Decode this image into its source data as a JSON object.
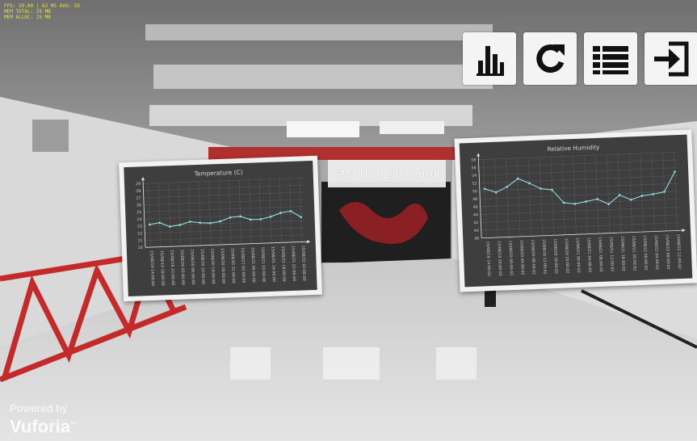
{
  "stats": {
    "line1": "FPS: 59.00 | 62 MS AVG: 59",
    "line2": "MEM TOTAL: 29 MB",
    "line3": "MEM ALLOC: 25 MB"
  },
  "toolbar": {
    "buttons": [
      {
        "name": "chart-button",
        "icon": "bar-chart-icon"
      },
      {
        "name": "refresh-button",
        "icon": "refresh-icon"
      },
      {
        "name": "list-button",
        "icon": "list-icon"
      },
      {
        "name": "exit-button",
        "icon": "sign-out-icon"
      }
    ]
  },
  "sign": {
    "label": "SMT HCI Lab Sensor"
  },
  "branding": {
    "powered_by": "Powered by",
    "name": "Vuforia",
    "trademark": "™"
  },
  "chart_data": [
    {
      "type": "line",
      "title": "Temperature (C)",
      "yticks": [
        20,
        21,
        22,
        23,
        24,
        25,
        26,
        27,
        28,
        29
      ],
      "ylim": [
        20,
        29
      ],
      "x": [
        "15/08/19 14:00:00",
        "15/08/19 18:00:00",
        "15/08/19 22:00:00",
        "15/08/20 02:00:00",
        "15/08/20 06:00:00",
        "15/08/20 10:00:00",
        "15/08/20 14:00:00",
        "15/08/20 18:00:00",
        "15/08/20 22:00:00",
        "15/08/21 02:00:00",
        "15/08/21 06:00:00",
        "15/08/21 10:00:00",
        "15/08/21 14:00:00",
        "15/08/21 18:00:00",
        "15/08/21 22:00:00",
        "15/08/22 02:00:00"
      ],
      "values": [
        23.2,
        23.4,
        22.8,
        23.0,
        23.4,
        23.2,
        23.1,
        23.3,
        23.8,
        23.9,
        23.4,
        23.4,
        23.7,
        24.2,
        24.4,
        23.5
      ],
      "grid": true,
      "color": "#8fd6d9"
    },
    {
      "type": "line",
      "title": "Relative Humidity",
      "yticks": [
        38,
        40,
        42,
        44,
        46,
        48,
        50,
        52,
        54,
        56,
        58
      ],
      "ylim": [
        38,
        58
      ],
      "x": [
        "15/08/19 14:00:02",
        "15/08/19 20:00:02",
        "15/08/20 00:00:02",
        "15/08/20 04:00:02",
        "15/08/20 08:00:02",
        "15/08/20 12:00:02",
        "15/08/20 16:00:02",
        "15/08/20 20:00:02",
        "15/08/21 00:00:02",
        "15/08/21 04:00:02",
        "15/08/21 08:00:02",
        "15/08/21 12:00:02",
        "15/08/21 16:00:02",
        "15/08/21 20:00:02",
        "15/08/22 00:00:02",
        "15/08/22 04:00:02",
        "15/08/22 08:00:02",
        "15/08/22 12:00:02"
      ],
      "values": [
        50.5,
        49.5,
        50.8,
        52.8,
        51.5,
        50.0,
        49.6,
        46.2,
        45.8,
        46.3,
        46.8,
        45.4,
        47.6,
        46.3,
        47.2,
        47.5,
        48.0,
        53.0
      ],
      "grid": true,
      "color": "#8fd6d9"
    }
  ]
}
